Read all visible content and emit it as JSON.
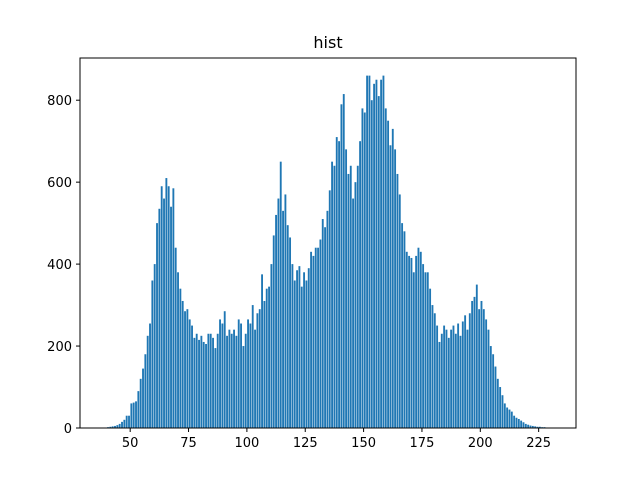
{
  "chart_data": {
    "type": "histogram",
    "title": "hist",
    "color": "#1f77b4",
    "bins": [
      38,
      39,
      40,
      41,
      42,
      43,
      44,
      45,
      46,
      47,
      48,
      49,
      50,
      51,
      52,
      53,
      54,
      55,
      56,
      57,
      58,
      59,
      60,
      61,
      62,
      63,
      64,
      65,
      66,
      67,
      68,
      69,
      70,
      71,
      72,
      73,
      74,
      75,
      76,
      77,
      78,
      79,
      80,
      81,
      82,
      83,
      84,
      85,
      86,
      87,
      88,
      89,
      90,
      91,
      92,
      93,
      94,
      95,
      96,
      97,
      98,
      99,
      100,
      101,
      102,
      103,
      104,
      105,
      106,
      107,
      108,
      109,
      110,
      111,
      112,
      113,
      114,
      115,
      116,
      117,
      118,
      119,
      120,
      121,
      122,
      123,
      124,
      125,
      126,
      127,
      128,
      129,
      130,
      131,
      132,
      133,
      134,
      135,
      136,
      137,
      138,
      139,
      140,
      141,
      142,
      143,
      144,
      145,
      146,
      147,
      148,
      149,
      150,
      151,
      152,
      153,
      154,
      155,
      156,
      157,
      158,
      159,
      160,
      161,
      162,
      163,
      164,
      165,
      166,
      167,
      168,
      169,
      170,
      171,
      172,
      173,
      174,
      175,
      176,
      177,
      178,
      179,
      180,
      181,
      182,
      183,
      184,
      185,
      186,
      187,
      188,
      189,
      190,
      191,
      192,
      193,
      194,
      195,
      196,
      197,
      198,
      199,
      200,
      201,
      202,
      203,
      204,
      205,
      206,
      207,
      208,
      209,
      210,
      211,
      212,
      213,
      214,
      215,
      216,
      217,
      218,
      219,
      220,
      221,
      222,
      223,
      224,
      225,
      226,
      227,
      228,
      229,
      230,
      231,
      232
    ],
    "values": [
      0,
      1,
      2,
      3,
      4,
      5,
      7,
      10,
      15,
      20,
      30,
      30,
      60,
      62,
      65,
      90,
      120,
      145,
      180,
      225,
      255,
      360,
      400,
      500,
      535,
      590,
      560,
      610,
      590,
      540,
      585,
      440,
      380,
      340,
      310,
      285,
      290,
      265,
      250,
      220,
      230,
      215,
      225,
      210,
      205,
      230,
      230,
      220,
      195,
      230,
      265,
      255,
      285,
      225,
      240,
      230,
      240,
      225,
      265,
      255,
      200,
      230,
      265,
      255,
      300,
      240,
      280,
      290,
      375,
      310,
      340,
      345,
      400,
      470,
      520,
      560,
      650,
      530,
      570,
      495,
      465,
      400,
      360,
      385,
      395,
      345,
      380,
      360,
      390,
      430,
      420,
      440,
      440,
      460,
      510,
      490,
      530,
      580,
      650,
      640,
      710,
      700,
      790,
      815,
      680,
      620,
      640,
      560,
      600,
      640,
      700,
      780,
      770,
      860,
      860,
      800,
      840,
      850,
      810,
      850,
      860,
      780,
      750,
      690,
      730,
      680,
      620,
      570,
      500,
      480,
      430,
      420,
      415,
      380,
      420,
      440,
      430,
      400,
      380,
      380,
      340,
      300,
      280,
      250,
      210,
      230,
      250,
      240,
      220,
      240,
      250,
      230,
      255,
      225,
      260,
      275,
      240,
      280,
      310,
      320,
      350,
      290,
      310,
      290,
      265,
      240,
      200,
      180,
      150,
      120,
      100,
      80,
      60,
      50,
      45,
      40,
      30,
      25,
      22,
      18,
      14,
      10,
      8,
      6,
      5,
      4,
      3,
      3,
      2,
      2,
      1,
      1,
      1,
      0
    ],
    "xlim": [
      28.5,
      241
    ],
    "ylim": [
      0,
      903
    ],
    "xticks": [
      50,
      75,
      100,
      125,
      150,
      175,
      200,
      225
    ],
    "yticks": [
      0,
      200,
      400,
      600,
      800
    ]
  }
}
